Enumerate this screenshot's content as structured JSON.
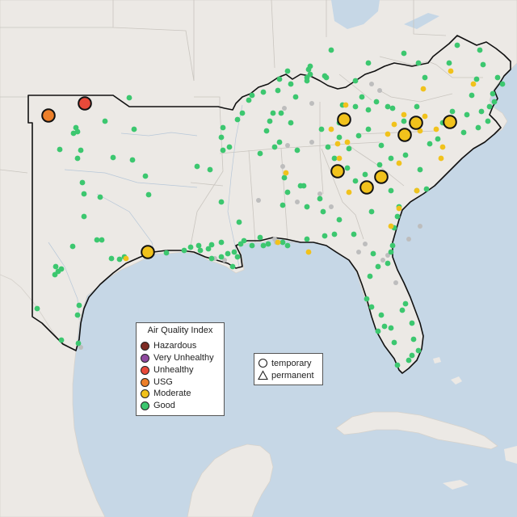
{
  "map": {
    "colors": {
      "ocean": "#c6d7e6",
      "land": "#ece9e5",
      "hazardous": "#7e2b24",
      "very_unhealthy": "#8f4aa0",
      "unhealthy": "#e84a3a",
      "usg": "#ec7f2a",
      "moderate": "#f1c21c",
      "good": "#3cc76f",
      "no_data": "#bdbdbd"
    },
    "large_markers": [
      {
        "category": "USG",
        "shape": "circle"
      },
      {
        "category": "Unhealthy",
        "shape": "circle"
      },
      {
        "category": "Moderate",
        "shape": "circle"
      },
      {
        "category": "Moderate",
        "shape": "circle"
      },
      {
        "category": "Moderate",
        "shape": "circle"
      },
      {
        "category": "Moderate",
        "shape": "circle"
      },
      {
        "category": "Moderate",
        "shape": "circle"
      },
      {
        "category": "Moderate",
        "shape": "circle"
      },
      {
        "category": "Moderate",
        "shape": "circle"
      },
      {
        "category": "Moderate",
        "shape": "circle"
      }
    ]
  },
  "legend": {
    "title": "Air Quality Index",
    "items": [
      {
        "label": "Hazardous",
        "color": "#7e2b24"
      },
      {
        "label": "Very Unhealthy",
        "color": "#8f4aa0"
      },
      {
        "label": "Unhealthy",
        "color": "#e84a3a"
      },
      {
        "label": "USG",
        "color": "#ec7f2a"
      },
      {
        "label": "Moderate",
        "color": "#f1c21c"
      },
      {
        "label": "Good",
        "color": "#3cc76f"
      }
    ]
  },
  "shape_legend": {
    "temporary": "temporary",
    "permanent": "permanent"
  }
}
